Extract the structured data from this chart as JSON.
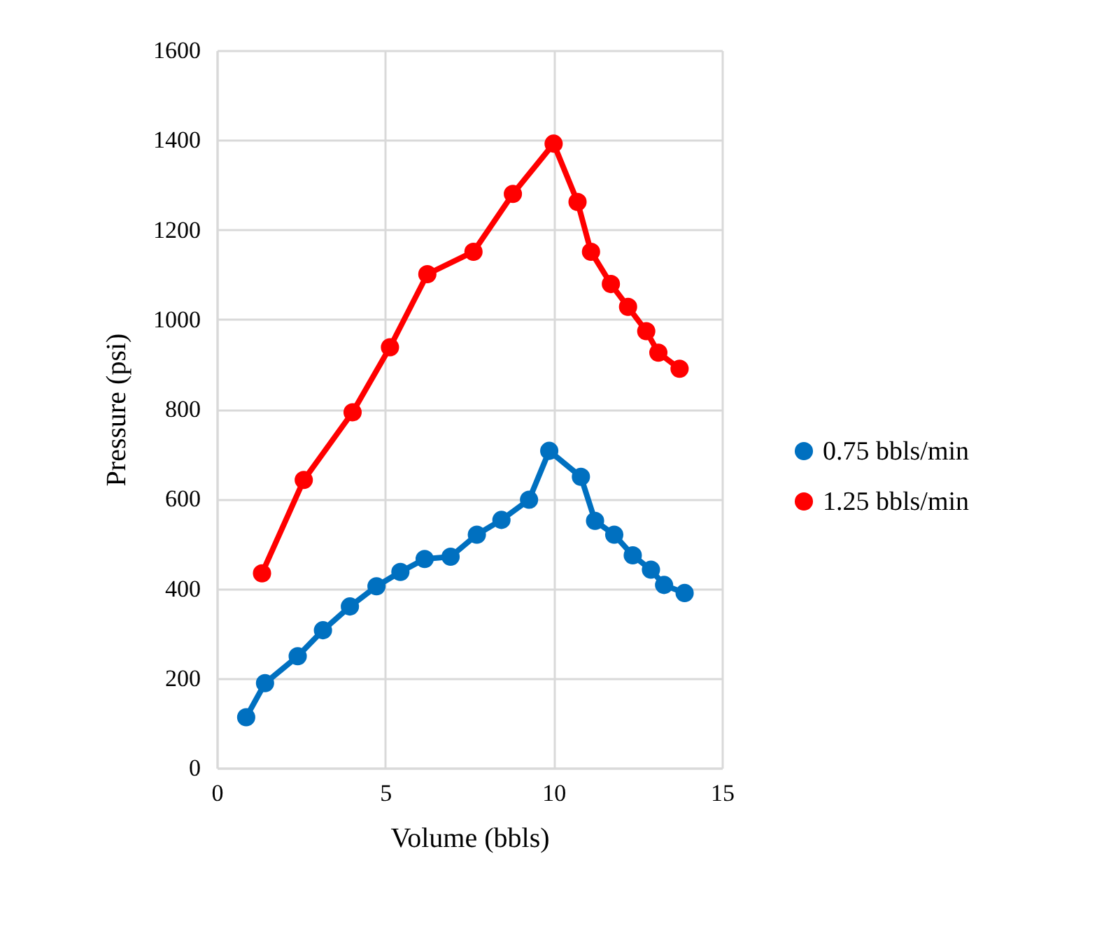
{
  "chart_data": {
    "type": "line",
    "xlabel": "Volume (bbls)",
    "ylabel": "Pressure (psi)",
    "xlim": [
      0,
      15
    ],
    "xticks": [
      0,
      5,
      10,
      15
    ],
    "ylim": [
      0,
      1600
    ],
    "yticks": [
      0,
      200,
      400,
      600,
      800,
      {
        "value": 1000,
        "label": "1000"
      },
      {
        "value": 1200,
        "label": "1200"
      },
      {
        "value": 1400,
        "label": "1400"
      },
      {
        "value": 1600,
        "label": "1600"
      }
    ],
    "grid": true,
    "legend": "right",
    "marker": "circle",
    "line_style": "solid",
    "series": [
      {
        "name": "0.75 bbls/min",
        "color": "#0070c0",
        "x": [
          0.87,
          1.43,
          2.4,
          3.15,
          3.95,
          4.74,
          5.45,
          6.17,
          6.94,
          7.72,
          8.45,
          9.27,
          9.87,
          10.81,
          11.23,
          11.8,
          12.35,
          12.89,
          13.28,
          13.89
        ],
        "values": [
          113,
          189,
          249,
          307,
          360,
          405,
          437,
          466,
          471,
          520,
          553,
          598,
          707,
          649,
          551,
          520,
          474,
          442,
          408,
          390
        ]
      },
      {
        "name": "1.25 bbls/min",
        "color": "#ff0000",
        "x": [
          1.34,
          2.58,
          4.03,
          5.14,
          6.25,
          7.62,
          8.79,
          10.0,
          10.71,
          11.11,
          11.7,
          12.21,
          12.75,
          13.11,
          13.74
        ],
        "values": [
          434,
          642,
          793,
          938,
          1101,
          1151,
          1280,
          1392,
          1262,
          1151,
          1079,
          1028,
          974,
          926,
          890
        ]
      }
    ]
  }
}
